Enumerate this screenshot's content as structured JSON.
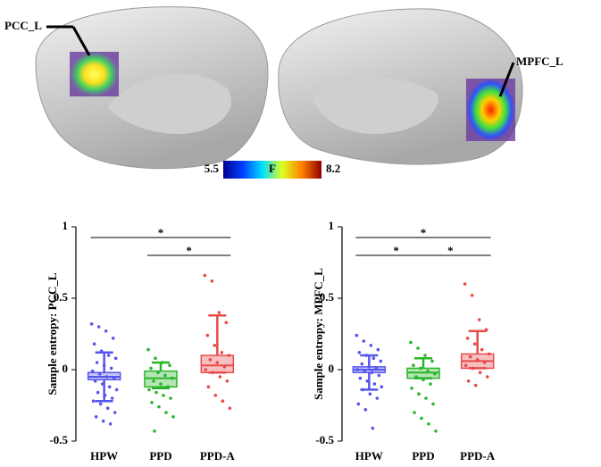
{
  "brain_panel": {
    "left_label": "PCC_L",
    "right_label": "MPFC_L",
    "colorbar": {
      "min": 5.5,
      "label": "F",
      "max": 8.2
    }
  },
  "chart_data": [
    {
      "type": "box",
      "ylabel": "Sample entropy: PCC_L",
      "categories": [
        "HPW",
        "PPD",
        "PPD-A"
      ],
      "colors": [
        "#5656ee",
        "#2ab52a",
        "#e84a4a"
      ],
      "ylim": [
        -0.5,
        1
      ],
      "yticks": [
        -0.5,
        0,
        0.5,
        1
      ],
      "boxes": [
        {
          "q1": -0.07,
          "median": -0.05,
          "q3": -0.02,
          "low": -0.22,
          "high": 0.12
        },
        {
          "q1": -0.12,
          "median": -0.06,
          "q3": -0.01,
          "low": -0.13,
          "high": 0.05
        },
        {
          "q1": -0.02,
          "median": 0.03,
          "q3": 0.1,
          "low": -0.02,
          "high": 0.38
        }
      ],
      "points": [
        [
          0.32,
          0.3,
          0.27,
          0.22,
          0.18,
          0.13,
          0.1,
          0.08,
          0.05,
          0.03,
          0.01,
          -0.01,
          -0.03,
          -0.05,
          -0.06,
          -0.08,
          -0.1,
          -0.12,
          -0.14,
          -0.16,
          -0.18,
          -0.2,
          -0.22,
          -0.24,
          -0.27,
          -0.3,
          -0.33,
          -0.36,
          -0.38
        ],
        [
          0.14,
          0.08,
          0.05,
          0.03,
          0.01,
          -0.02,
          -0.04,
          -0.06,
          -0.08,
          -0.1,
          -0.12,
          -0.14,
          -0.16,
          -0.18,
          -0.2,
          -0.23,
          -0.26,
          -0.3,
          -0.33,
          -0.43
        ],
        [
          0.66,
          0.62,
          0.4,
          0.33,
          0.24,
          0.17,
          0.12,
          0.1,
          0.07,
          0.05,
          0.02,
          0.0,
          -0.02,
          -0.05,
          -0.08,
          -0.12,
          -0.18,
          -0.22,
          -0.27
        ]
      ],
      "significance": [
        {
          "from": 0,
          "to": 2,
          "label": "*"
        },
        {
          "from": 1,
          "to": 2,
          "label": "*"
        }
      ]
    },
    {
      "type": "box",
      "ylabel": "Sample entropy: MPFC_L",
      "categories": [
        "HPW",
        "PPD",
        "PPD-A"
      ],
      "colors": [
        "#5656ee",
        "#2ab52a",
        "#e84a4a"
      ],
      "ylim": [
        -0.5,
        1
      ],
      "yticks": [
        -0.5,
        0,
        0.5,
        1
      ],
      "boxes": [
        {
          "q1": -0.02,
          "median": 0.0,
          "q3": 0.02,
          "low": -0.14,
          "high": 0.1
        },
        {
          "q1": -0.06,
          "median": -0.02,
          "q3": 0.01,
          "low": -0.06,
          "high": 0.08
        },
        {
          "q1": 0.01,
          "median": 0.06,
          "q3": 0.11,
          "low": 0.01,
          "high": 0.27
        }
      ],
      "points": [
        [
          0.24,
          0.2,
          0.17,
          0.14,
          0.12,
          0.1,
          0.08,
          0.06,
          0.04,
          0.02,
          0.01,
          0.0,
          -0.01,
          -0.02,
          -0.04,
          -0.06,
          -0.08,
          -0.1,
          -0.12,
          -0.14,
          -0.17,
          -0.2,
          -0.24,
          -0.28,
          -0.41
        ],
        [
          0.19,
          0.15,
          0.1,
          0.06,
          0.03,
          0.01,
          -0.01,
          -0.03,
          -0.05,
          -0.07,
          -0.1,
          -0.13,
          -0.17,
          -0.2,
          -0.24,
          -0.3,
          -0.34,
          -0.38,
          -0.43
        ],
        [
          0.6,
          0.52,
          0.35,
          0.28,
          0.22,
          0.18,
          0.14,
          0.11,
          0.09,
          0.07,
          0.05,
          0.03,
          0.01,
          -0.02,
          -0.05,
          -0.08,
          -0.11
        ]
      ],
      "significance": [
        {
          "from": 0,
          "to": 2,
          "label": "*"
        },
        {
          "from": 0,
          "to": 1,
          "label": "*"
        },
        {
          "from": 1,
          "to": 2,
          "label": "*"
        }
      ]
    }
  ]
}
